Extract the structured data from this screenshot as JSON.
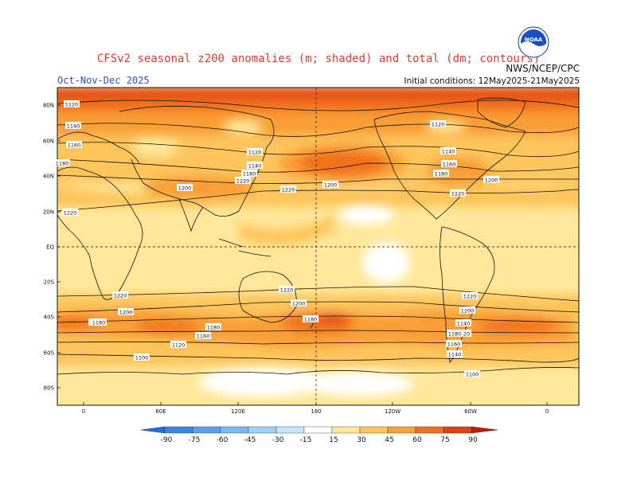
{
  "header": {
    "title": "CFSv2 seasonal z200 anomalies (m; shaded) and total (dm; contours)",
    "period": "Oct-Nov-Dec 2025",
    "initial_conditions": "Initial conditions: 12May2025-21May2025",
    "agency": "NWS/NCEP/CPC",
    "logo_text": "NOAA"
  },
  "axes": {
    "lat_labels": [
      "80N",
      "60N",
      "40N",
      "20N",
      "EQ",
      "20S",
      "40S",
      "60S",
      "80S"
    ],
    "lon_labels": [
      "0",
      "60E",
      "120E",
      "180",
      "120W",
      "60W",
      "0"
    ]
  },
  "contours": {
    "labels": [
      {
        "text": "1120"
      },
      {
        "text": "1140"
      },
      {
        "text": "1160"
      },
      {
        "text": "1180"
      },
      {
        "text": "1200"
      },
      {
        "text": "1220"
      },
      {
        "text": "1120"
      },
      {
        "text": "1140"
      },
      {
        "text": "1180"
      },
      {
        "text": "1220"
      },
      {
        "text": "1200"
      },
      {
        "text": "1120"
      },
      {
        "text": "1140"
      },
      {
        "text": "1160"
      },
      {
        "text": "1180"
      },
      {
        "text": "1220"
      },
      {
        "text": "1200"
      },
      {
        "text": "1220"
      },
      {
        "text": "1220"
      },
      {
        "text": "1200"
      },
      {
        "text": "1180"
      },
      {
        "text": "1180"
      },
      {
        "text": "1160"
      },
      {
        "text": "1140"
      },
      {
        "text": "1120"
      },
      {
        "text": "1100"
      },
      {
        "text": "1180"
      },
      {
        "text": "1220"
      },
      {
        "text": "1200"
      },
      {
        "text": "1220"
      },
      {
        "text": "1200"
      },
      {
        "text": "1180"
      },
      {
        "text": "1160"
      },
      {
        "text": "1140"
      },
      {
        "text": "1120"
      },
      {
        "text": "1100"
      },
      {
        "text": "1180"
      },
      {
        "text": "1200"
      }
    ]
  },
  "colorbar": {
    "ticks": [
      "-90",
      "-75",
      "-60",
      "-45",
      "-30",
      "-15",
      "15",
      "30",
      "45",
      "60",
      "75",
      "90"
    ],
    "colors": [
      "#1e6fdc",
      "#3a87e6",
      "#5a9ff0",
      "#7ab8f5",
      "#9fd0fa",
      "#c4e6fc",
      "#ffffff",
      "#ffe79a",
      "#fdc55c",
      "#fa9f36",
      "#f2711f",
      "#e24012",
      "#c41a0a"
    ]
  }
}
